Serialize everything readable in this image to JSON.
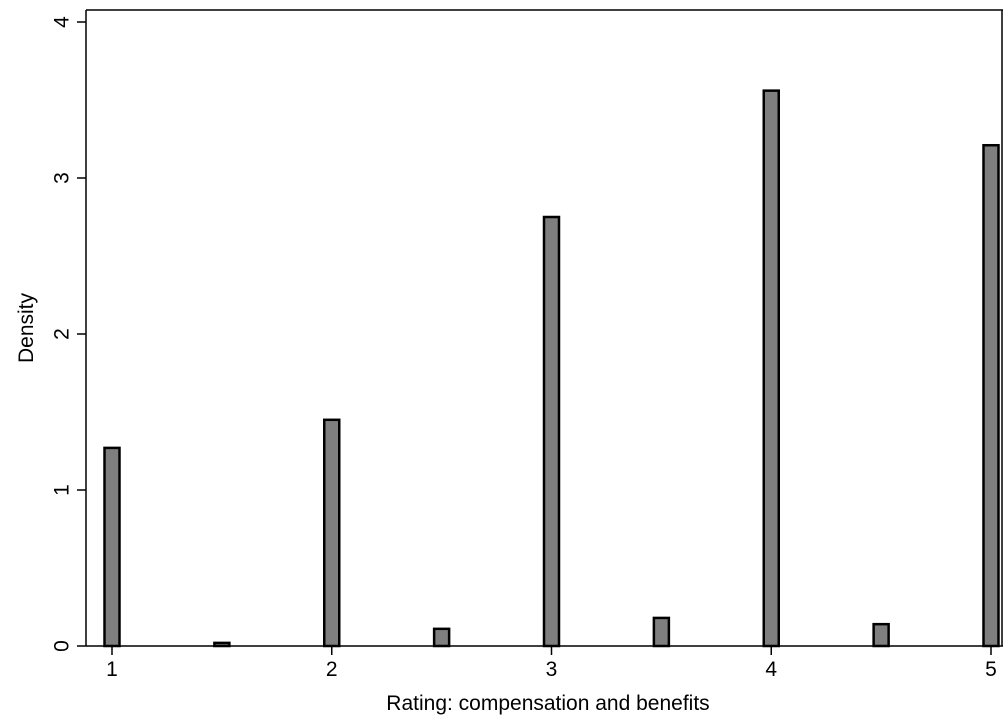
{
  "chart_data": {
    "type": "bar",
    "title": "",
    "xlabel": "Rating: compensation and benefits",
    "ylabel": "Density",
    "xlim": [
      1,
      5
    ],
    "ylim": [
      0,
      4
    ],
    "x_ticks": [
      1,
      2,
      3,
      4,
      5
    ],
    "y_ticks": [
      0,
      1,
      2,
      3,
      4
    ],
    "x_tick_labels": [
      "1",
      "2",
      "3",
      "4",
      "5"
    ],
    "y_tick_labels": [
      "0",
      "1",
      "2",
      "3",
      "4"
    ],
    "grid": false,
    "bar_color": "#7f7f7f",
    "bar_edge_color": "#000000",
    "bars": [
      {
        "x": 1.0,
        "value": 1.27
      },
      {
        "x": 1.5,
        "value": 0.02
      },
      {
        "x": 2.0,
        "value": 1.45
      },
      {
        "x": 2.5,
        "value": 0.11
      },
      {
        "x": 3.0,
        "value": 2.75
      },
      {
        "x": 3.5,
        "value": 0.18
      },
      {
        "x": 4.0,
        "value": 3.56
      },
      {
        "x": 4.5,
        "value": 0.14
      },
      {
        "x": 5.0,
        "value": 3.21
      }
    ]
  }
}
